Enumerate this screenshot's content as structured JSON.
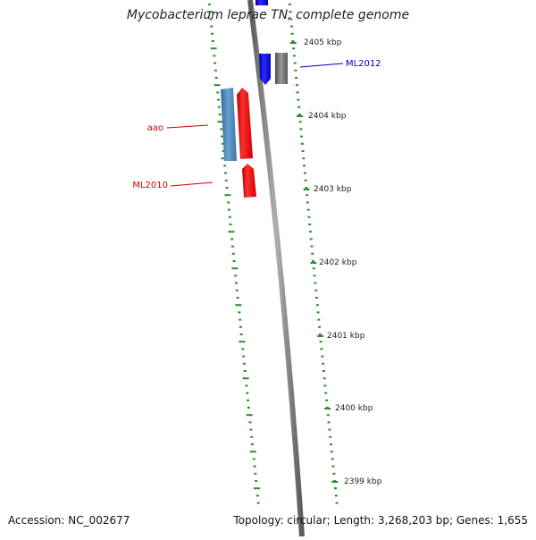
{
  "title": "Mycobacterium leprae TN, complete genome",
  "footer": {
    "accession": "Accession: NC_002677",
    "summary": "Topology: circular; Length: 3,268,203 bp; Genes: 1,655"
  },
  "ticks": [
    "2405 kbp",
    "2404 kbp",
    "2403 kbp",
    "2402 kbp",
    "2401 kbp",
    "2400 kbp",
    "2399 kbp"
  ],
  "genes": [
    {
      "label": "ML2012",
      "color": "#0000cc",
      "strand": "reverse"
    },
    {
      "label": "",
      "color": "#707070",
      "strand": "reverse"
    },
    {
      "label": "aao",
      "color": "#4682b4",
      "strand": "forward"
    },
    {
      "label": "",
      "color": "#ff0000",
      "strand": "forward"
    },
    {
      "label": "ML2010",
      "color": "#ff0000",
      "strand": "forward"
    }
  ],
  "colors": {
    "backbone": "#808080",
    "tick": "#2e8b2e",
    "label_red": "#cc0000",
    "label_blue": "#0000cc"
  }
}
